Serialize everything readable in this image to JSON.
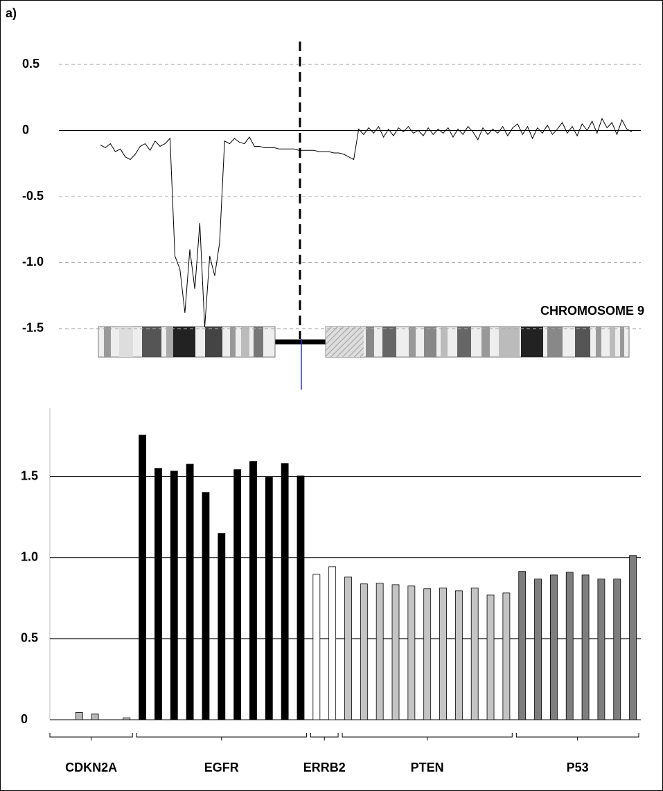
{
  "panel_label": "a)",
  "chart_data": [
    {
      "type": "line",
      "annotation": "CHROMOSOME 9",
      "color": "#000000",
      "ylim": [
        -1.6,
        0.6
      ],
      "yticks": [
        0.5,
        0,
        -0.5,
        {
          "value": -1,
          "label": "-1.0"
        },
        -1.5
      ],
      "grid": true,
      "values": [
        -0.11,
        -0.13,
        -0.1,
        -0.16,
        -0.14,
        -0.2,
        -0.22,
        -0.18,
        -0.12,
        -0.1,
        -0.15,
        -0.08,
        -0.12,
        -0.1,
        -0.06,
        -0.95,
        -1.05,
        -1.38,
        -0.9,
        -1.2,
        -0.7,
        -1.49,
        -0.95,
        -1.1,
        -0.85,
        -0.08,
        -0.1,
        -0.06,
        -0.09,
        -0.1,
        -0.05,
        -0.12,
        -0.12,
        -0.13,
        -0.13,
        -0.13,
        -0.14,
        -0.14,
        -0.14,
        -0.14,
        -0.15,
        -0.15,
        -0.15,
        -0.15,
        -0.16,
        -0.16,
        -0.16,
        -0.17,
        -0.17,
        -0.18,
        -0.2,
        -0.22,
        0.01,
        -0.03,
        0.02,
        -0.02,
        0.03,
        -0.05,
        0.01,
        -0.04,
        0.02,
        -0.01,
        0.03,
        -0.02,
        0,
        -0.04,
        0.02,
        -0.03,
        0.01,
        -0.02,
        0.02,
        -0.05,
        0.01,
        -0.03,
        0.03,
        -0.01,
        -0.07,
        0.02,
        -0.03,
        0.01,
        -0.02,
        0.03,
        -0.04,
        0.02,
        0.05,
        -0.03,
        0.03,
        -0.06,
        0.02,
        -0.02,
        0.04,
        -0.03,
        0.01,
        0.06,
        -0.02,
        0.03,
        -0.04,
        0.05,
        0,
        0.07,
        -0.02,
        0.09,
        0.02,
        0.06,
        -0.03,
        0.08,
        0.01,
        -0.01
      ]
    },
    {
      "type": "bar",
      "ylim": [
        0,
        1.9
      ],
      "yticks": [
        {
          "value": 1.5,
          "label": "1.5"
        },
        {
          "value": 1,
          "label": "1.0"
        },
        0.5,
        0
      ],
      "grid": true,
      "series": [
        {
          "name": "CDKN2A",
          "color": "#b8b8b8",
          "values": [
            0,
            0.045,
            0.035,
            0,
            0.012
          ]
        },
        {
          "name": "EGFR",
          "color": "#000000",
          "values": [
            1.756,
            1.551,
            1.534,
            1.577,
            1.402,
            1.15,
            1.543,
            1.594,
            1.496,
            1.581,
            1.504
          ]
        },
        {
          "name": "ERRB2",
          "color": "#ffffff",
          "values": [
            0.897,
            0.944
          ]
        },
        {
          "name": "PTEN",
          "color": "#c4c4c4",
          "values": [
            0.88,
            0.838,
            0.842,
            0.833,
            0.825,
            0.808,
            0.812,
            0.795,
            0.812,
            0.769,
            0.782
          ]
        },
        {
          "name": "P53",
          "color": "#7e7e7e",
          "values": [
            0.915,
            0.868,
            0.893,
            0.91,
            0.893,
            0.868,
            0.868,
            1.013
          ]
        }
      ]
    }
  ]
}
